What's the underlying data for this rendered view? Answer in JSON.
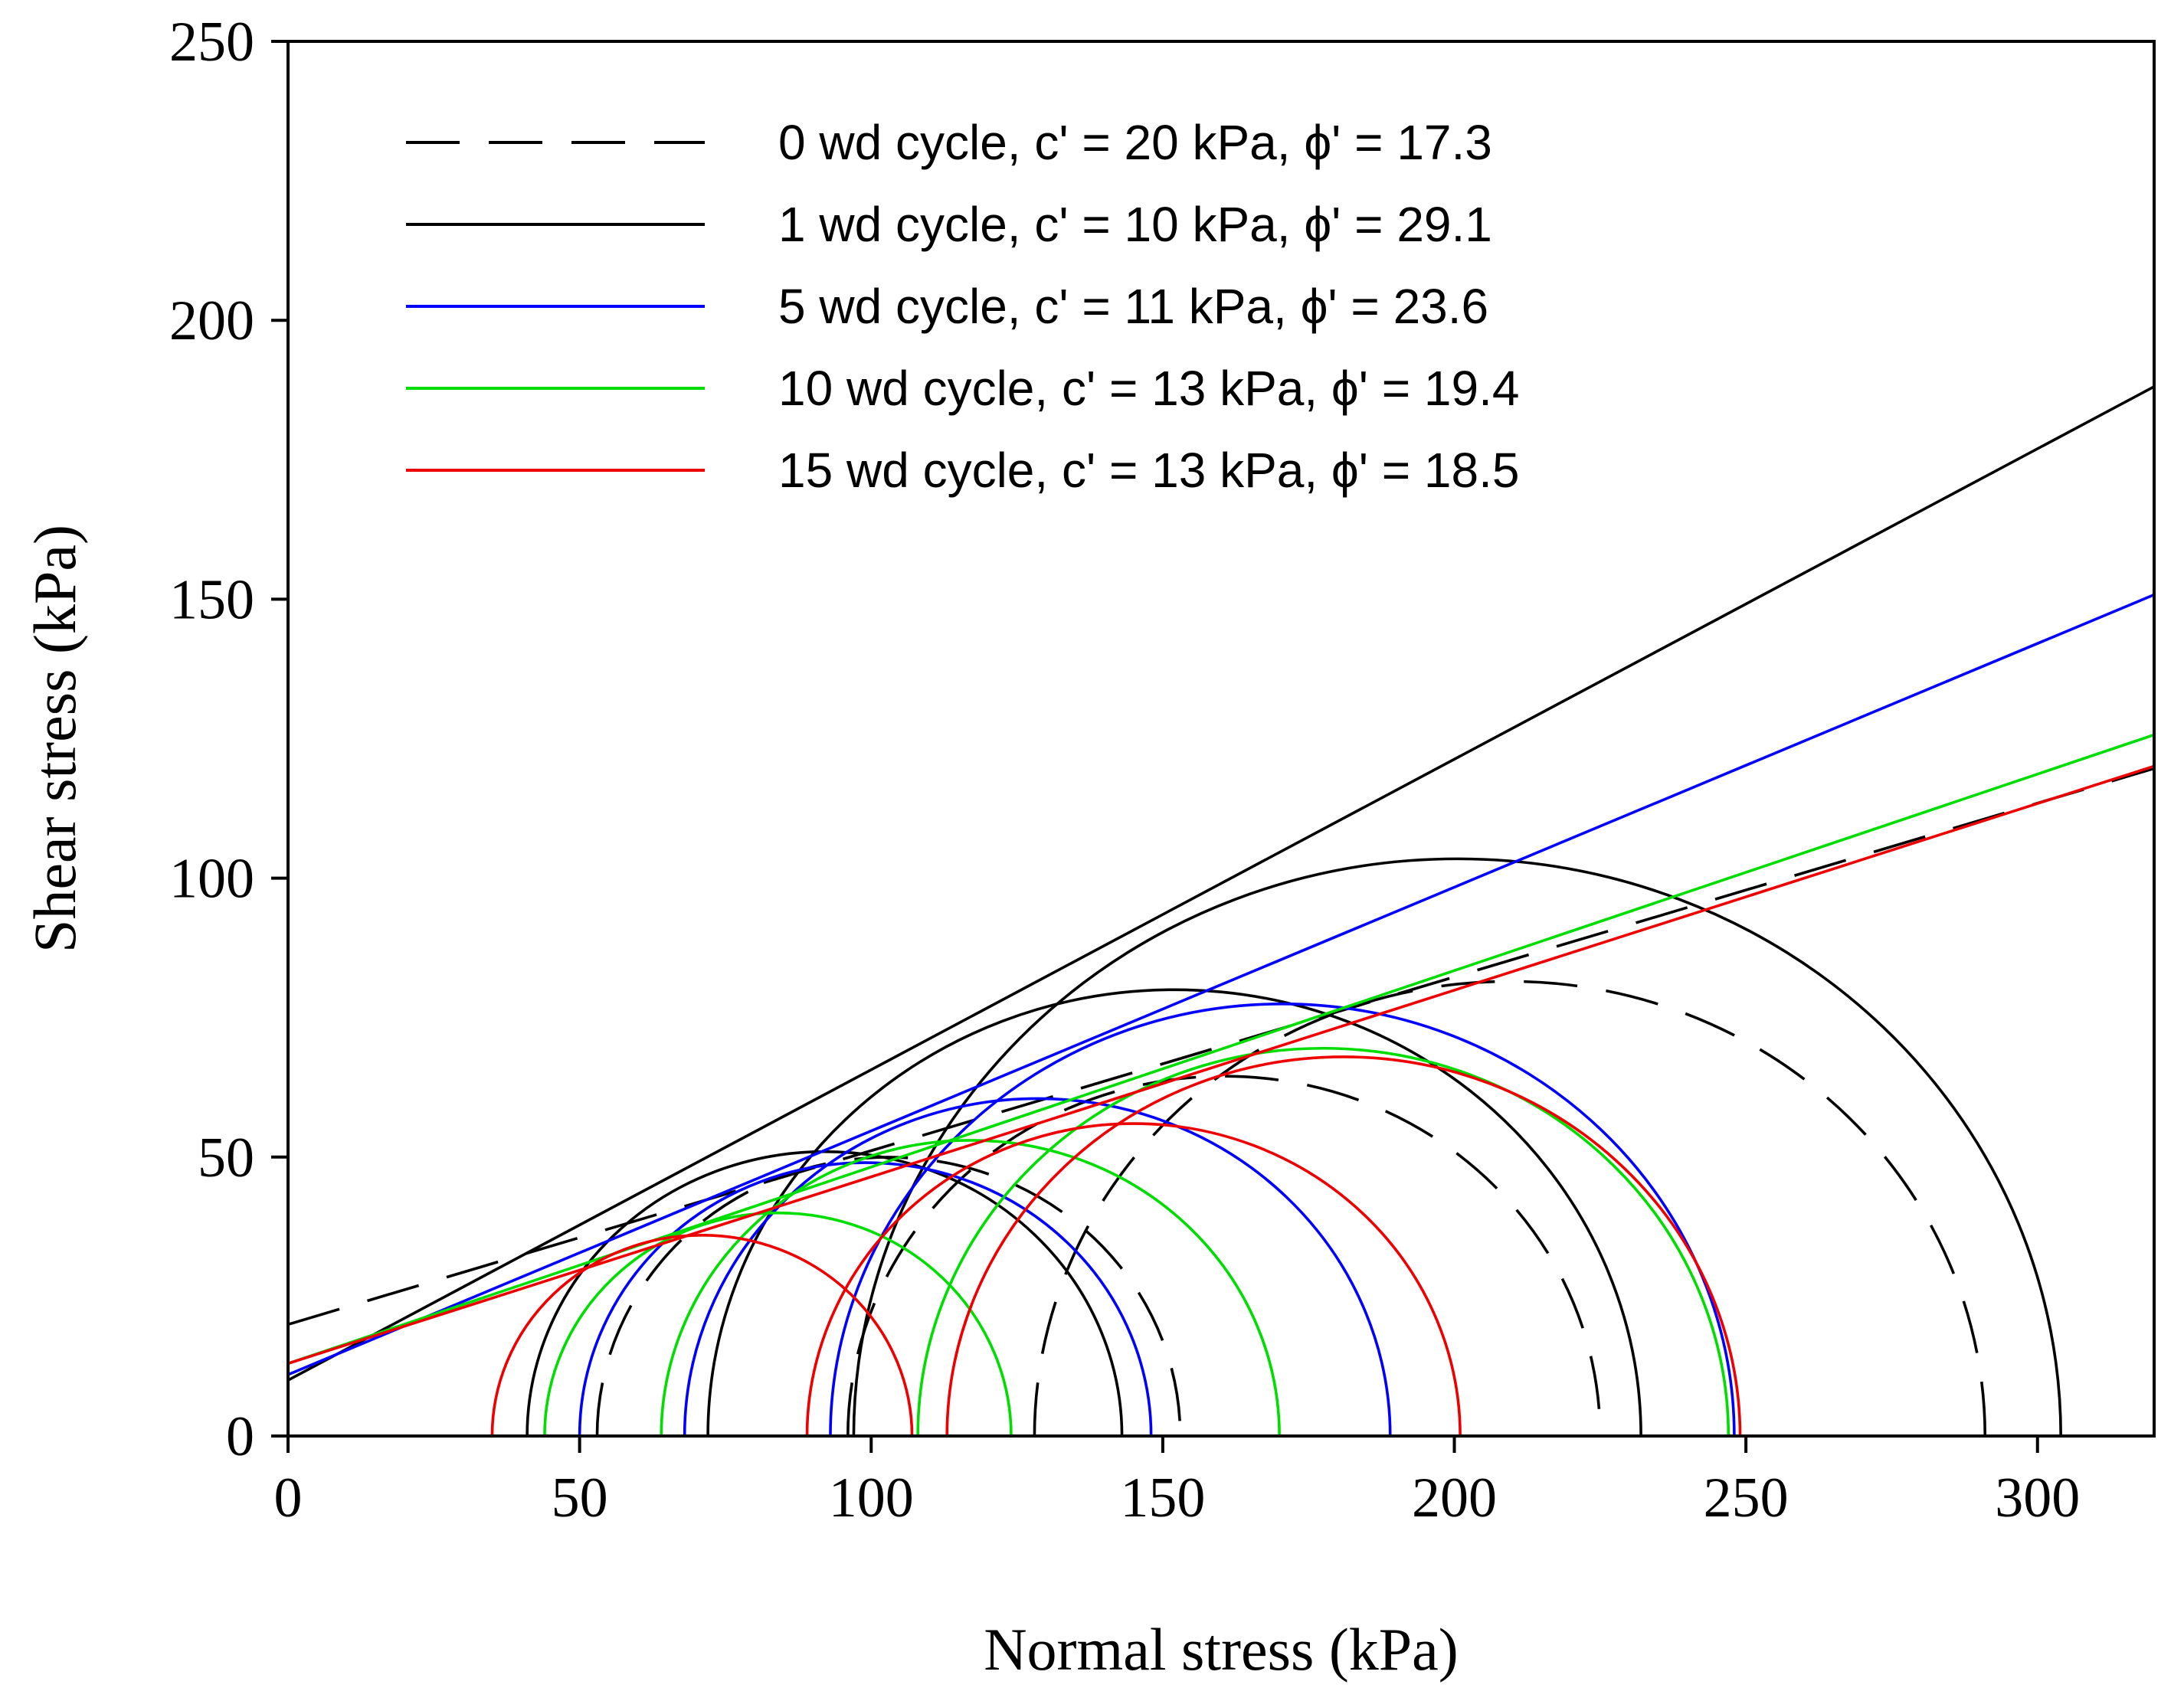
{
  "chart_data": {
    "type": "line",
    "xlabel": "Normal stress (kPa)",
    "ylabel": "Shear stress (kPa)",
    "xlim": [
      0,
      320
    ],
    "ylim": [
      0,
      250
    ],
    "xticks": [
      0,
      50,
      100,
      150,
      200,
      250,
      300
    ],
    "yticks": [
      0,
      50,
      100,
      150,
      200,
      250
    ],
    "grid": false,
    "legend_position": "top-left",
    "series": [
      {
        "name": "0 wd cycle, c' = 20 kPa, ϕ' = 17.3",
        "color": "#000000",
        "dash": "dashed",
        "envelope": {
          "c": 20,
          "phi": 17.3
        },
        "circles": [
          {
            "sigma3": 53,
            "sigma1": 153
          },
          {
            "sigma3": 96,
            "sigma1": 225
          },
          {
            "sigma3": 128,
            "sigma1": 291
          }
        ]
      },
      {
        "name": "1 wd cycle, c' = 10 kPa, ϕ' = 29.1",
        "color": "#000000",
        "dash": "solid",
        "envelope": {
          "c": 10,
          "phi": 29.1
        },
        "circles": [
          {
            "sigma3": 41,
            "sigma1": 143
          },
          {
            "sigma3": 72,
            "sigma1": 232
          },
          {
            "sigma3": 97,
            "sigma1": 304
          }
        ]
      },
      {
        "name": "5 wd cycle, c' = 11 kPa, ϕ' = 23.6",
        "color": "#0000ff",
        "dash": "solid",
        "envelope": {
          "c": 11,
          "phi": 23.6
        },
        "circles": [
          {
            "sigma3": 50,
            "sigma1": 148
          },
          {
            "sigma3": 68,
            "sigma1": 189
          },
          {
            "sigma3": 93,
            "sigma1": 248
          }
        ]
      },
      {
        "name": "10 wd cycle, c' = 13 kPa, ϕ' = 19.4",
        "color": "#00dd00",
        "dash": "solid",
        "envelope": {
          "c": 13,
          "phi": 19.4
        },
        "circles": [
          {
            "sigma3": 44,
            "sigma1": 124
          },
          {
            "sigma3": 64,
            "sigma1": 170
          },
          {
            "sigma3": 108,
            "sigma1": 247
          }
        ]
      },
      {
        "name": "15 wd cycle, c' = 13 kPa, ϕ' = 18.5",
        "color": "#ee0000",
        "dash": "solid",
        "envelope": {
          "c": 13,
          "phi": 18.5
        },
        "circles": [
          {
            "sigma3": 35,
            "sigma1": 107
          },
          {
            "sigma3": 89,
            "sigma1": 201
          },
          {
            "sigma3": 113,
            "sigma1": 249
          }
        ]
      }
    ]
  }
}
